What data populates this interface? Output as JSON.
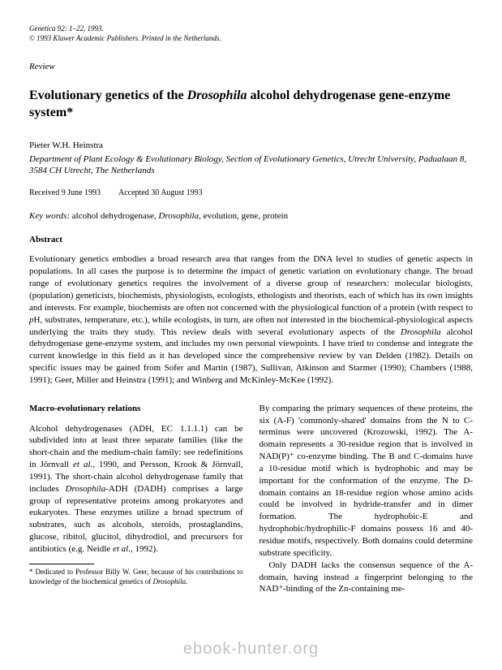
{
  "journal": {
    "citation": "Genetica 92: 1–22, 1993.",
    "copyright": "© 1993 Kluwer Academic Publishers. Printed in the Netherlands."
  },
  "reviewLabel": "Review",
  "title": {
    "pre": "Evolutionary genetics of the ",
    "italic": "Drosophila",
    "post": " alcohol dehydrogenase gene-enzyme system*"
  },
  "author": "Pieter W.H. Heinstra",
  "affiliation": "Department of Plant Ecology & Evolutionary Biology, Section of Evolutionary Genetics, Utrecht University, Padualaan 8, 3584 CH Utrecht, The Netherlands",
  "dates": {
    "received": "Received 9 June 1993",
    "accepted": "Accepted 30 August 1993"
  },
  "keywords": {
    "label": "Key words:",
    "p1": "  alcohol dehydrogenase, ",
    "italic": "Drosophila",
    "p2": ", evolution, gene, protein"
  },
  "abstractHeading": "Abstract",
  "abstract": {
    "s1": "Evolutionary genetics embodies a broad research area that ranges from the DNA level to studies of genetic aspects in populations. In all cases the purpose is to determine the impact of genetic variation on evolutionary change. The broad range of evolutionary genetics requires the involvement of a diverse group of researchers: molecular biologists, (population) geneticists, biochemists, physiologists, ecologists, ethologists and theorists, each of which has its own insights and interests. For example, biochemists are often not concerned with the physiological function of a protein (with respect to ",
    "s2": "p",
    "s3": "H, substrates, temperature, etc.), while ecologists, in turn, are often not interested in the biochemical-physiological aspects underlying the traits they study. This review deals with several evolutionary aspects of the ",
    "s4": "Drosophila",
    "s5": " alcohol dehydrogenase gene-enzyme system, and includes my own personal viewpoints. I have tried to condense and integrate the current knowledge in this field as it has developed since the comprehensive review by van Delden (1982). Details on specific issues may be gained from Sofer and Martin (1987), Sullivan, Atkinson and Starmer (1990); Chambers (1988, 1991); Geer, Miller and Heinstra (1991); and Winberg and McKinley-McKee (1992)."
  },
  "leftColumn": {
    "heading": "Macro-evolutionary relations",
    "p1a": "Alcohol dehydrogenases (ADH, EC 1.1.1.1) can be subdivided into at least three separate families (like the short-chain and the medium-chain family: see redefinitions in Jörnvall ",
    "p1b": "et al.",
    "p1c": ", 1990, and Persson, Krook & Jörnvall, 1991). The short-chain alcohol dehydrogenase family that includes ",
    "p1d": "Drosophila",
    "p1e": "-ADH (DADH) comprises a large group of representative proteins among prokaryotes and eukaryotes. These enzymes utilize a broad spectrum of substrates, such as alcohols, steroids, prostaglandins, glucose, ribitol, glucitol, dihydrodiol, and precursors for antibiotics (e.g. Neidle ",
    "p1f": "et al.",
    "p1g": ", 1992)."
  },
  "footnote": {
    "p1": "* Dedicated to Professor Billy W. Geer, because of his contributions to knowledge of the biochemical genetics of ",
    "p2": "Drosophila",
    "p3": "."
  },
  "rightColumn": {
    "p1": "By comparing the primary sequences of these proteins, the six (A-F) 'commonly-shared' domains from the N to C-terminus were uncovered (Krozowski, 1992). The A-domain represents a 30-residue region that is involved in NAD(P)⁺ co-enzyme binding. The B and C-domains have a 10-residue motif which is hydrophobic and may be important for the conformation of the enzyme. The D-domain contains an 18-residue region whose amino acids could be involved in hydride-transfer and in dimer formation. The hydrophobic-E and hydrophobic/hydrophilic-F domains possess 16 and 40-residue motifs, respectively. Both domains could determine substrate specificity.",
    "p2": "Only DADH lacks the consensus sequence of the A-domain, having instead a fingerprint belonging to the NAD⁺-binding of the Zn-containing me-"
  },
  "watermark": "ebook-hunter.org"
}
